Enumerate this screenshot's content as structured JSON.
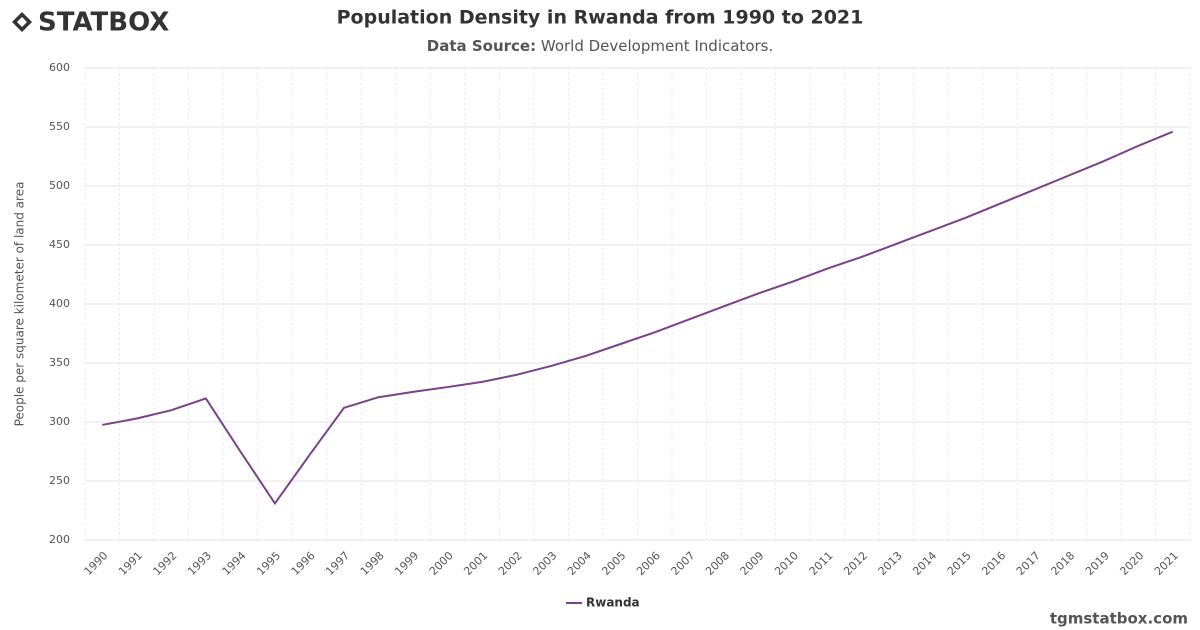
{
  "logo": "STATBOX",
  "footer": "tgmstatbox.com",
  "chart_data": {
    "type": "line",
    "title": "Population Density in Rwanda from 1990 to 2021",
    "subtitle_label": "Data Source:",
    "subtitle": "World Development Indicators.",
    "y_label": "People per square kilometer of land area",
    "categories": [
      "1990",
      "1991",
      "1992",
      "1993",
      "1994",
      "1995",
      "1996",
      "1997",
      "1998",
      "1999",
      "2000",
      "2001",
      "2002",
      "2003",
      "2004",
      "2005",
      "2006",
      "2007",
      "2008",
      "2009",
      "2010",
      "2011",
      "2012",
      "2013",
      "2014",
      "2015",
      "2016",
      "2017",
      "2018",
      "2019",
      "2020",
      "2021"
    ],
    "series": [
      {
        "name": "Rwanda",
        "color": "#7b3f8c",
        "values": [
          297.5,
          303,
          310,
          320,
          275,
          231,
          272,
          312,
          321,
          325.5,
          329.6,
          334,
          340,
          347.5,
          356,
          366,
          376,
          387,
          398,
          409,
          419,
          430,
          440,
          451,
          462,
          473,
          485,
          497,
          509,
          521,
          534,
          546
        ]
      }
    ],
    "ylim": [
      200,
      600
    ],
    "yticks": [
      200,
      250,
      300,
      350,
      400,
      450,
      500,
      550,
      600
    ],
    "grid": true,
    "legend": "bottom"
  }
}
